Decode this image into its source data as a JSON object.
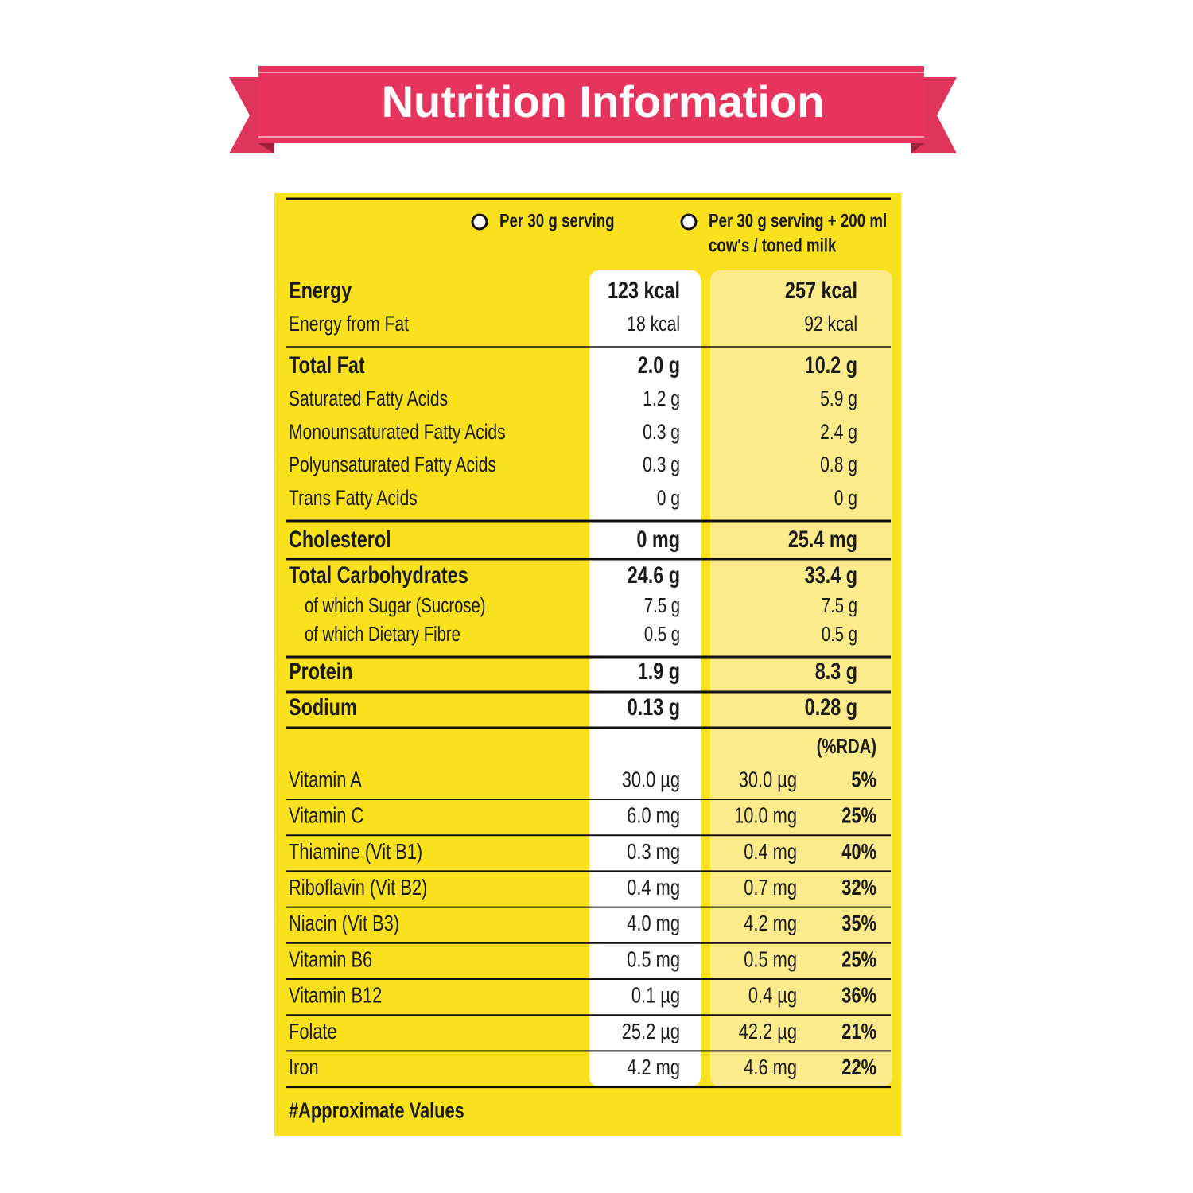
{
  "title": "Nutrition Information",
  "columns": [
    {
      "lines": [
        "Per 30 g serving"
      ]
    },
    {
      "lines": [
        "Per 30 g serving + 200 ml",
        "cow's / toned milk"
      ]
    }
  ],
  "nutrients": [
    [
      {
        "name": "Energy",
        "per_serving": "123 kcal",
        "with_milk": "257 kcal"
      },
      {
        "name": "Energy from Fat",
        "per_serving": "18 kcal",
        "with_milk": "92 kcal"
      }
    ],
    [
      {
        "name": "Total Fat",
        "per_serving": "2.0 g",
        "with_milk": "10.2 g"
      },
      {
        "name": "Saturated Fatty Acids",
        "per_serving": "1.2 g",
        "with_milk": "5.9 g"
      },
      {
        "name": "Monounsaturated Fatty Acids",
        "per_serving": "0.3 g",
        "with_milk": "2.4 g"
      },
      {
        "name": "Polyunsaturated Fatty Acids",
        "per_serving": "0.3 g",
        "with_milk": "0.8 g"
      },
      {
        "name": "Trans Fatty Acids",
        "per_serving": "0 g",
        "with_milk": "0 g"
      }
    ],
    [
      {
        "name": "Cholesterol",
        "per_serving": "0 mg",
        "with_milk": "25.4 mg"
      }
    ],
    [
      {
        "name": "Total Carbohydrates",
        "per_serving": "24.6 g",
        "with_milk": "33.4 g"
      },
      {
        "name": "of which Sugar (Sucrose)",
        "per_serving": "7.5 g",
        "with_milk": "7.5 g"
      },
      {
        "name": "of which Dietary Fibre",
        "per_serving": "0.5 g",
        "with_milk": "0.5 g"
      }
    ],
    [
      {
        "name": "Protein",
        "per_serving": "1.9 g",
        "with_milk": "8.3 g"
      }
    ],
    [
      {
        "name": "Sodium",
        "per_serving": "0.13 g",
        "with_milk": "0.28 g"
      }
    ]
  ],
  "rda_header": "(%RDA)",
  "vitamins": [
    {
      "name": "Vitamin A",
      "per_serving": "30.0 µg",
      "with_milk": "30.0 µg",
      "rda": "5%"
    },
    {
      "name": "Vitamin C",
      "per_serving": "6.0 mg",
      "with_milk": "10.0 mg",
      "rda": "25%"
    },
    {
      "name": "Thiamine (Vit B1)",
      "per_serving": "0.3 mg",
      "with_milk": "0.4 mg",
      "rda": "40%"
    },
    {
      "name": "Riboflavin (Vit B2)",
      "per_serving": "0.4 mg",
      "with_milk": "0.7 mg",
      "rda": "32%"
    },
    {
      "name": "Niacin (Vit B3)",
      "per_serving": "4.0 mg",
      "with_milk": "4.2 mg",
      "rda": "35%"
    },
    {
      "name": "Vitamin B6",
      "per_serving": "0.5 mg",
      "with_milk": "0.5 mg",
      "rda": "25%"
    },
    {
      "name": "Vitamin B12",
      "per_serving": "0.1 µg",
      "with_milk": "0.4 µg",
      "rda": "36%"
    },
    {
      "name": "Folate",
      "per_serving": "25.2 µg",
      "with_milk": "42.2 µg",
      "rda": "21%"
    },
    {
      "name": "Iron",
      "per_serving": "4.2 mg",
      "with_milk": "4.6 mg",
      "rda": "22%"
    }
  ],
  "footnote": "#Approximate Values"
}
